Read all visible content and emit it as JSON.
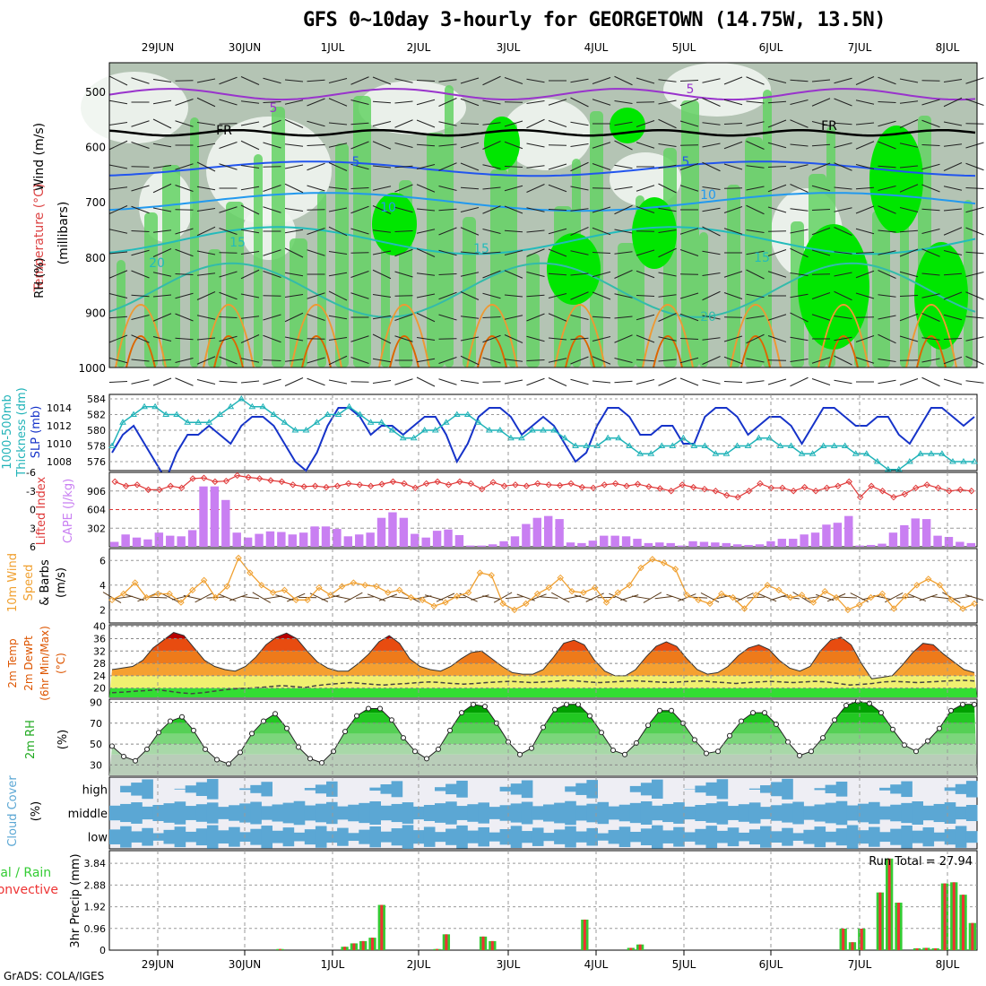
{
  "title": "GFS 0~10day 3-hourly for GEORGETOWN (14.75W, 13.5N)",
  "footer": "GrADS: COLA/IGES",
  "dates": [
    "29JUN",
    "30JUN",
    "1JUL",
    "2JUL",
    "3JUL",
    "4JUL",
    "5JUL",
    "6JUL",
    "7JUL",
    "8JUL"
  ],
  "colors": {
    "rh_light": "#f0f5f0",
    "rh_grey": "#b4c4b4",
    "rh_mid": "#64d264",
    "rh_bright": "#00e600",
    "thickness": "#21b3b8",
    "slp": "#1633c9",
    "cape": "#c97ff2",
    "lifted_index": "#e03a3a",
    "wind_speed": "#f0a030",
    "cloud": "#5ba7d4",
    "precip_total": "#33cc33",
    "precip_conv": "#ee3333"
  },
  "panels": {
    "upper_air": {
      "labels": [
        "Wind (m/s)",
        "Temperature (°C)",
        "RH (%)",
        "(millibars)"
      ],
      "y_ticks": [
        500,
        600,
        700,
        800,
        900,
        1000
      ],
      "contour_labels": [
        "5",
        "5",
        "FR",
        "FR",
        "5",
        "5",
        "10",
        "10",
        "15",
        "15",
        "15",
        "20",
        "20"
      ]
    },
    "thickness_slp": {
      "labels": [
        "1000-500mb",
        "Thickness (dm)",
        "SLP (mb)"
      ],
      "left_ticks": [
        576,
        578,
        580,
        582,
        584
      ],
      "right_ticks": [
        1008,
        1010,
        1012,
        1014
      ]
    },
    "cape_li": {
      "labels": [
        "Lifted Index",
        "CAPE (J/kg)"
      ],
      "left_ticks": [
        "-3",
        "0",
        "3",
        "6",
        "-6"
      ],
      "right_ticks": [
        "302",
        "604",
        "906"
      ]
    },
    "wind10m": {
      "labels": [
        "10m Wind",
        "Speed",
        "& Barbs",
        "(m/s)"
      ],
      "y_ticks": [
        2,
        4,
        6
      ]
    },
    "temp2m": {
      "labels": [
        "2m Temp",
        "2m DewPt",
        "(6hr Min/Max)",
        "(°C)"
      ],
      "y_ticks": [
        20,
        24,
        28,
        32,
        36,
        40
      ]
    },
    "rh2m": {
      "labels": [
        "2m RH",
        "(%)"
      ],
      "y_ticks": [
        30,
        50,
        70,
        90
      ]
    },
    "cloud": {
      "labels": [
        "Cloud Cover",
        "(%)"
      ],
      "levels": [
        "high",
        "middle",
        "low"
      ]
    },
    "precip": {
      "labels": [
        "3hr Precip (mm)",
        "tal / Rain",
        "Convective"
      ],
      "y_ticks": [
        "0",
        "0.96",
        "1.92",
        "2.88",
        "3.84"
      ],
      "run_total": "Run Total = 27.94"
    }
  },
  "chart_data": [
    {
      "type": "line",
      "panel": "thickness_slp",
      "time_step_hours": 3,
      "series": [
        {
          "name": "SLP (mb)",
          "values": [
            1009,
            1011,
            1012,
            1010,
            1008,
            1006,
            1009,
            1011,
            1011,
            1012,
            1011,
            1010,
            1012,
            1013,
            1013,
            1012,
            1010,
            1008,
            1007,
            1009,
            1012,
            1014,
            1014,
            1013,
            1011,
            1012,
            1012,
            1011,
            1012,
            1013,
            1013,
            1011,
            1008,
            1010,
            1013,
            1014,
            1014,
            1013,
            1011,
            1012,
            1013,
            1012,
            1010,
            1008,
            1009,
            1012,
            1014,
            1014,
            1013,
            1011,
            1011,
            1012,
            1012,
            1010,
            1010,
            1013,
            1014,
            1014,
            1013,
            1011,
            1012,
            1013,
            1013,
            1012,
            1010,
            1012,
            1014,
            1014,
            1013,
            1012,
            1012,
            1013,
            1013,
            1011,
            1010,
            1012,
            1014,
            1014,
            1013,
            1012,
            1013
          ]
        },
        {
          "name": "Thickness (dm)",
          "values": [
            578,
            581,
            582,
            583,
            583,
            582,
            582,
            581,
            581,
            581,
            582,
            583,
            584,
            583,
            583,
            582,
            581,
            580,
            580,
            581,
            582,
            582,
            583,
            582,
            581,
            581,
            580,
            579,
            579,
            580,
            580,
            581,
            582,
            582,
            581,
            580,
            580,
            579,
            579,
            580,
            580,
            580,
            579,
            578,
            578,
            578,
            579,
            579,
            578,
            577,
            577,
            578,
            578,
            579,
            578,
            578,
            577,
            577,
            578,
            578,
            579,
            579,
            578,
            578,
            577,
            577,
            578,
            578,
            578,
            577,
            577,
            576,
            575,
            575,
            576,
            577,
            577,
            577,
            576,
            576,
            576
          ]
        }
      ]
    },
    {
      "type": "bar",
      "panel": "cape_li",
      "series": [
        {
          "name": "CAPE (J/kg)",
          "values": [
            80,
            200,
            150,
            120,
            230,
            180,
            170,
            270,
            980,
            980,
            760,
            230,
            150,
            210,
            250,
            240,
            200,
            230,
            330,
            330,
            290,
            170,
            200,
            230,
            470,
            560,
            470,
            210,
            150,
            260,
            280,
            190,
            20,
            20,
            40,
            90,
            170,
            370,
            470,
            500,
            450,
            70,
            60,
            100,
            180,
            180,
            170,
            130,
            60,
            70,
            60,
            20,
            90,
            80,
            70,
            60,
            40,
            30,
            40,
            90,
            130,
            130,
            200,
            230,
            360,
            390,
            500,
            20,
            30,
            50,
            230,
            350,
            460,
            450,
            180,
            160,
            80,
            60
          ]
        },
        {
          "name": "Lifted Index",
          "values": [
            -4.5,
            -3.8,
            -4.0,
            -3.2,
            -3.2,
            -3.8,
            -3.5,
            -5.0,
            -5.1,
            -4.5,
            -4.6,
            -5.5,
            -5.2,
            -5.0,
            -4.7,
            -4.5,
            -4.0,
            -3.7,
            -3.8,
            -3.6,
            -3.8,
            -4.2,
            -4.0,
            -3.8,
            -4.1,
            -4.5,
            -4.2,
            -3.5,
            -4.2,
            -4.5,
            -4.0,
            -4.5,
            -4.2,
            -3.3,
            -4.4,
            -3.8,
            -4.0,
            -3.8,
            -4.2,
            -4.0,
            -3.9,
            -4.2,
            -3.6,
            -3.5,
            -4.0,
            -4.2,
            -3.8,
            -4.1,
            -3.7,
            -3.4,
            -3.0,
            -4.0,
            -3.6,
            -3.3,
            -3.0,
            -2.3,
            -2.0,
            -3.0,
            -4.2,
            -3.5,
            -3.5,
            -3.0,
            -3.6,
            -3.0,
            -3.5,
            -3.8,
            -4.5,
            -2.0,
            -3.8,
            -3.0,
            -2.0,
            -2.5,
            -3.5,
            -4.0,
            -3.5,
            -3.0,
            -3.2,
            -3.0
          ]
        }
      ]
    },
    {
      "type": "line",
      "panel": "wind10m",
      "series": [
        {
          "name": "10m Wind Speed (m/s)",
          "values": [
            2.8,
            3.3,
            4.2,
            3.0,
            3.3,
            3.3,
            2.6,
            3.6,
            4.4,
            3.0,
            3.9,
            6.2,
            5.0,
            4.0,
            3.4,
            3.6,
            2.8,
            2.8,
            3.8,
            3.2,
            3.9,
            4.2,
            4.0,
            3.9,
            3.4,
            3.6,
            3.0,
            2.8,
            2.3,
            2.6,
            3.1,
            3.4,
            5.0,
            4.8,
            2.5,
            2.0,
            2.5,
            3.3,
            3.8,
            4.6,
            3.5,
            3.4,
            3.8,
            2.6,
            3.4,
            4.0,
            5.4,
            6.1,
            5.8,
            5.3,
            3.2,
            2.8,
            2.5,
            3.3,
            3.0,
            2.1,
            3.2,
            4.0,
            3.6,
            3.0,
            3.2,
            2.6,
            3.5,
            3.0,
            2.0,
            2.4,
            3.0,
            3.3,
            2.1,
            3.1,
            4.0,
            4.5,
            4.0,
            2.8,
            2.1,
            2.5
          ]
        }
      ]
    },
    {
      "type": "area",
      "panel": "temp2m",
      "series": [
        {
          "name": "2m Temp (°C)",
          "values": [
            26,
            26.5,
            27,
            29,
            33,
            35.5,
            38,
            37,
            33,
            29,
            27,
            26,
            25.5,
            27,
            30,
            34,
            36.5,
            37.8,
            36,
            32,
            28.5,
            26.5,
            25.5,
            25.5,
            28,
            31,
            35,
            37,
            34.5,
            29.5,
            27,
            26,
            25.5,
            27,
            29.5,
            31.5,
            32,
            29.5,
            27,
            25,
            24.5,
            24.5,
            26,
            30,
            34.5,
            35.5,
            34,
            29,
            25.5,
            24,
            24,
            26,
            30,
            33.5,
            35,
            33.5,
            29.5,
            26,
            24.5,
            25,
            27,
            30.5,
            33,
            34,
            32.5,
            29,
            26.5,
            25.5,
            27,
            32,
            35.5,
            36.5,
            34,
            28,
            23,
            23.5,
            24,
            27.5,
            31.5,
            34.5,
            34,
            31,
            28.5,
            26,
            25
          ]
        },
        {
          "name": "2m DewPt (°C)",
          "values": [
            18.5,
            18.7,
            19,
            19.2,
            19.5,
            19,
            18.5,
            18.2,
            18.5,
            19,
            19.5,
            19.8,
            20,
            20.2,
            20.5,
            20.8,
            20.5,
            20.2,
            20.8,
            21.2,
            21.5,
            21.8,
            21.5,
            21.2,
            21,
            21.3,
            21.5,
            21.8,
            22,
            21.8,
            21.5,
            21.3,
            21.5,
            21.8,
            22,
            22.2,
            22,
            21.8,
            22,
            22.2,
            22.5,
            22.3,
            22,
            21.8,
            22,
            22.2,
            22.4,
            22.2,
            22,
            21.8,
            22,
            22.2,
            22.3,
            22,
            21.8,
            21.5,
            21.8,
            22,
            22.2,
            22,
            21.8,
            22,
            22.2,
            22,
            21.5,
            21,
            21.2,
            21.5,
            22,
            22.2,
            22,
            21.8,
            22,
            22.2,
            22.4,
            22.5,
            22.3
          ]
        }
      ]
    },
    {
      "type": "area",
      "panel": "rh2m",
      "series": [
        {
          "name": "2m RH (%)",
          "values": [
            48,
            38,
            34,
            45,
            61,
            72,
            76,
            63,
            45,
            35,
            31,
            42,
            60,
            72,
            79,
            65,
            47,
            36,
            32,
            43,
            62,
            77,
            84,
            84,
            73,
            56,
            43,
            36,
            45,
            63,
            80,
            88,
            86,
            70,
            52,
            40,
            46,
            66,
            83,
            88,
            88,
            77,
            61,
            44,
            40,
            51,
            68,
            82,
            82,
            70,
            54,
            41,
            43,
            58,
            72,
            80,
            80,
            69,
            52,
            39,
            43,
            56,
            73,
            87,
            91,
            89,
            80,
            64,
            49,
            43,
            53,
            65,
            82,
            88,
            88
          ]
        }
      ]
    },
    {
      "type": "bar",
      "panel": "precip",
      "series": [
        {
          "name": "Total / Rain (mm)",
          "values": [
            0,
            0,
            0,
            0,
            0,
            0,
            0,
            0,
            0,
            0,
            0,
            0,
            0,
            0,
            0,
            0,
            0,
            0,
            0.05,
            0,
            0,
            0,
            0,
            0,
            0,
            0.15,
            0.3,
            0.4,
            0.55,
            2.0,
            0,
            0,
            0,
            0,
            0,
            0.05,
            0.7,
            0,
            0,
            0,
            0.6,
            0.4,
            0,
            0,
            0,
            0,
            0,
            0,
            0,
            0,
            0,
            1.35,
            0,
            0,
            0,
            0,
            0.1,
            0.25,
            0,
            0,
            0,
            0,
            0,
            0,
            0,
            0,
            0,
            0,
            0,
            0,
            0,
            0,
            0,
            0,
            0,
            0,
            0,
            0,
            0,
            0.95,
            0.35,
            0.95,
            0,
            2.55,
            4.05,
            2.1,
            0,
            0.08,
            0.1,
            0.08,
            2.95,
            3.0,
            2.45,
            1.2
          ]
        }
      ]
    }
  ]
}
